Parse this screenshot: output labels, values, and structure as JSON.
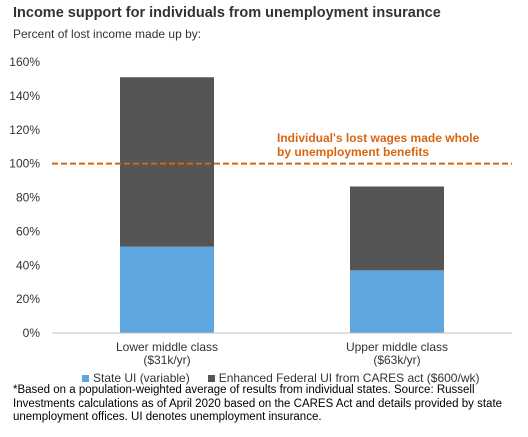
{
  "title": "Income support for individuals from unemployment insurance",
  "subtitle": "Percent of lost income made up by:",
  "annotation_lines": [
    "Individual's  lost wages made whole",
    "by unemployment  benefits"
  ],
  "footnote": "*Based on a population-weighted average of results from individual states. Source: Russell Investments calculations as of April 2020 based on the CARES Act  and details provided by state unemployment offices. UI denotes unemployment insurance.",
  "colors": {
    "state": "#5da6df",
    "federal": "#555555",
    "reference": "#d9650f",
    "axis": "#bfbfbf",
    "text": "#333333"
  },
  "chart_data": {
    "type": "bar",
    "stacked": true,
    "categories": [
      [
        "Lower middle class",
        "($31k/yr)"
      ],
      [
        "Upper middle class",
        "($63k/yr)"
      ]
    ],
    "series": [
      {
        "name": "State UI (variable)",
        "values": [
          51,
          37
        ],
        "color": "#5da6df"
      },
      {
        "name": "Enhanced Federal UI from CARES act ($600/wk)",
        "values": [
          100,
          49.5
        ],
        "color": "#555555"
      }
    ],
    "ylim": [
      0,
      160
    ],
    "yticks": [
      0,
      20,
      40,
      60,
      80,
      100,
      120,
      140,
      160
    ],
    "ytick_labels": [
      "0%",
      "20%",
      "40%",
      "60%",
      "80%",
      "100%",
      "120%",
      "140%",
      "160%"
    ],
    "reference_line": {
      "y": 100,
      "style": "dashed"
    },
    "grid": false,
    "legend_position": "bottom"
  }
}
